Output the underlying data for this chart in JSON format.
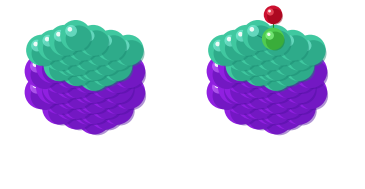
{
  "background_color": "#ffffff",
  "fig_width": 3.65,
  "fig_height": 1.89,
  "dpi": 100,
  "teal_color": "#40C8A0",
  "teal_dark": "#1A8870",
  "teal_highlight": "#80EED8",
  "purple_color": "#9020E0",
  "purple_dark": "#5010A0",
  "purple_highlight": "#C870FF",
  "carbon_color": "#50CC50",
  "carbon_dark": "#208820",
  "carbon_highlight": "#90FF90",
  "oxygen_color": "#CC1030",
  "oxygen_dark": "#880010",
  "oxygen_highlight": "#FF6070",
  "bond_teal": "#1A8870",
  "bond_purple": "#6010C0",
  "bond_interface": "#2A9870"
}
